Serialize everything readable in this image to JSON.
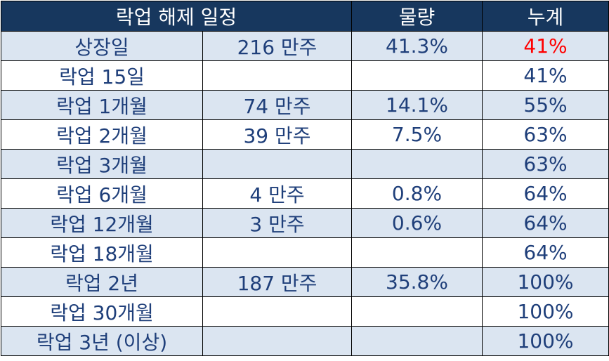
{
  "table": {
    "header": [
      "락업 해제 일정",
      "물량",
      "누계"
    ],
    "rows": [
      [
        "상장일",
        "216 만주",
        "41.3%",
        "41%"
      ],
      [
        "락업 15일",
        null,
        null,
        "41%"
      ],
      [
        "락업 1개월",
        "74 만주",
        "14.1%",
        "55%"
      ],
      [
        "락업 2개월",
        "39 만주",
        "7.5%",
        "63%"
      ],
      [
        "락업 3개월",
        null,
        null,
        "63%"
      ],
      [
        "락업 6개월",
        "4 만주",
        "0.8%",
        "64%"
      ],
      [
        "락업 12개월",
        "3 만주",
        "0.6%",
        "64%"
      ],
      [
        "락업 18개월",
        null,
        null,
        "64%"
      ],
      [
        "락업 2년",
        "187 만주",
        "35.8%",
        "100%"
      ],
      [
        "락업 30개월",
        null,
        null,
        "100%"
      ],
      [
        "락업 3년 (이상)",
        null,
        null,
        "100%"
      ]
    ]
  }
}
